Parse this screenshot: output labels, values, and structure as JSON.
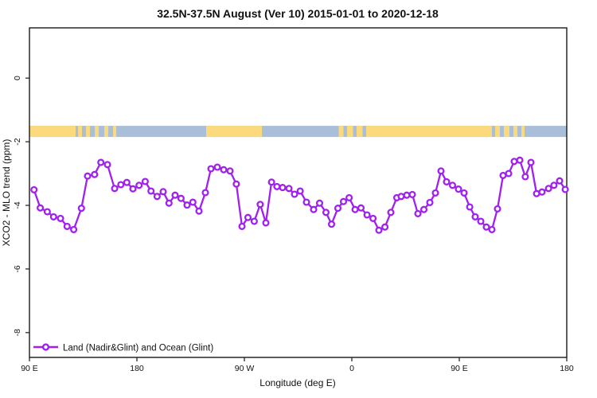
{
  "chart_data": {
    "type": "line",
    "title": "32.5N-37.5N August (Ver 10)   2015-01-01 to 2020-12-18",
    "xlabel": "Longitude (deg E)",
    "ylabel": "XCO2 - MLO trend (ppm)",
    "xlim": [
      90,
      540
    ],
    "ylim": [
      -8.78,
      1.58
    ],
    "grid": false,
    "x_ticks": [
      {
        "value": 90,
        "label": "90 E"
      },
      {
        "value": 180,
        "label": "180"
      },
      {
        "value": 270,
        "label": "90 W"
      },
      {
        "value": 360,
        "label": "0"
      },
      {
        "value": 450,
        "label": "90 E"
      },
      {
        "value": 540,
        "label": "180"
      }
    ],
    "y_ticks": [
      {
        "value": 0,
        "label": "0"
      },
      {
        "value": -2,
        "label": "-2"
      },
      {
        "value": -4,
        "label": "-4"
      },
      {
        "value": -6,
        "label": "-6"
      },
      {
        "value": -8,
        "label": "-8"
      }
    ],
    "legend": {
      "position": "bottom-left",
      "label": "Land (Nadir&Glint) and Ocean (Glint)"
    },
    "series": [
      {
        "name": "Land (Nadir&Glint) and Ocean (Glint)",
        "color": "#A020F0",
        "marker": "open-circle",
        "points": [
          [
            93.8,
            -3.51
          ],
          [
            99.1,
            -4.08
          ],
          [
            104.9,
            -4.2
          ],
          [
            110.2,
            -4.36
          ],
          [
            116.0,
            -4.41
          ],
          [
            121.5,
            -4.66
          ],
          [
            127.1,
            -4.76
          ],
          [
            133.5,
            -4.09
          ],
          [
            138.7,
            -3.08
          ],
          [
            144.5,
            -3.03
          ],
          [
            149.8,
            -2.65
          ],
          [
            155.3,
            -2.72
          ],
          [
            161.3,
            -3.47
          ],
          [
            166.5,
            -3.35
          ],
          [
            171.5,
            -3.28
          ],
          [
            176.7,
            -3.48
          ],
          [
            181.8,
            -3.37
          ],
          [
            186.9,
            -3.25
          ],
          [
            191.8,
            -3.55
          ],
          [
            196.9,
            -3.72
          ],
          [
            202.0,
            -3.57
          ],
          [
            206.9,
            -3.93
          ],
          [
            212.0,
            -3.68
          ],
          [
            216.9,
            -3.78
          ],
          [
            222.0,
            -3.99
          ],
          [
            226.9,
            -3.9
          ],
          [
            232.0,
            -4.18
          ],
          [
            237.3,
            -3.6
          ],
          [
            242.0,
            -2.85
          ],
          [
            247.3,
            -2.8
          ],
          [
            252.7,
            -2.88
          ],
          [
            258.0,
            -2.92
          ],
          [
            263.3,
            -3.33
          ],
          [
            268.0,
            -4.66
          ],
          [
            273.0,
            -4.38
          ],
          [
            278.3,
            -4.5
          ],
          [
            283.3,
            -3.97
          ],
          [
            288.0,
            -4.55
          ],
          [
            292.7,
            -3.27
          ],
          [
            297.3,
            -3.41
          ],
          [
            302.0,
            -3.44
          ],
          [
            307.3,
            -3.47
          ],
          [
            312.0,
            -3.65
          ],
          [
            316.7,
            -3.55
          ],
          [
            322.0,
            -3.9
          ],
          [
            328.0,
            -4.13
          ],
          [
            333.0,
            -3.93
          ],
          [
            338.3,
            -4.22
          ],
          [
            343.0,
            -4.59
          ],
          [
            348.3,
            -4.09
          ],
          [
            353.0,
            -3.88
          ],
          [
            357.7,
            -3.76
          ],
          [
            362.7,
            -4.13
          ],
          [
            367.7,
            -4.08
          ],
          [
            372.7,
            -4.3
          ],
          [
            377.7,
            -4.41
          ],
          [
            382.7,
            -4.78
          ],
          [
            387.7,
            -4.68
          ],
          [
            392.7,
            -4.22
          ],
          [
            397.7,
            -3.76
          ],
          [
            401.3,
            -3.72
          ],
          [
            406.0,
            -3.68
          ],
          [
            410.7,
            -3.66
          ],
          [
            415.3,
            -4.26
          ],
          [
            420.3,
            -4.13
          ],
          [
            425.3,
            -3.91
          ],
          [
            430.0,
            -3.61
          ],
          [
            434.7,
            -2.92
          ],
          [
            439.3,
            -3.26
          ],
          [
            444.3,
            -3.37
          ],
          [
            449.3,
            -3.49
          ],
          [
            454.0,
            -3.61
          ],
          [
            458.7,
            -4.05
          ],
          [
            463.3,
            -4.36
          ],
          [
            468.0,
            -4.5
          ],
          [
            472.7,
            -4.68
          ],
          [
            477.3,
            -4.76
          ],
          [
            482.0,
            -4.11
          ],
          [
            486.7,
            -3.06
          ],
          [
            491.3,
            -3.0
          ],
          [
            496.0,
            -2.62
          ],
          [
            500.7,
            -2.58
          ],
          [
            505.3,
            -3.1
          ],
          [
            510.0,
            -2.65
          ],
          [
            514.7,
            -3.63
          ],
          [
            519.3,
            -3.58
          ],
          [
            524.7,
            -3.47
          ],
          [
            529.3,
            -3.37
          ],
          [
            534.0,
            -3.23
          ],
          [
            538.7,
            -3.5
          ]
        ]
      }
    ],
    "map_strip": {
      "description": "land-ocean latitude band strip",
      "y_range": [
        -1.5,
        -1.85
      ],
      "ocean_color": "#A9BED9",
      "land_color": "#FBD97D",
      "ocean_extent": [
        90,
        540
      ],
      "land_segments": [
        [
          90,
          128.7
        ],
        [
          130.7,
          134
        ],
        [
          137.3,
          140.7
        ],
        [
          144.7,
          148
        ],
        [
          152.7,
          156
        ],
        [
          160,
          162.7
        ],
        [
          238,
          284.7
        ],
        [
          349,
          353
        ],
        [
          356,
          361
        ],
        [
          364,
          369
        ],
        [
          372,
          477.3
        ],
        [
          480,
          484
        ],
        [
          487.3,
          492
        ],
        [
          495.3,
          498.7
        ],
        [
          502,
          504.7
        ]
      ]
    }
  }
}
